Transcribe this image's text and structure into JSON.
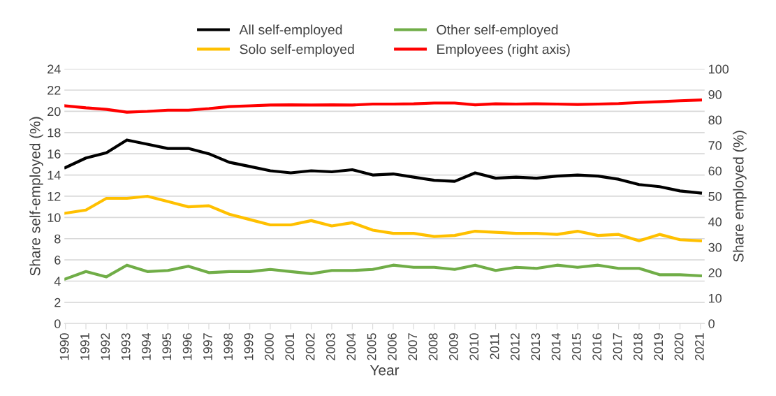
{
  "chart_data": {
    "type": "line",
    "xlabel": "Year",
    "ylabel": "Share self-employed (%)",
    "y2label": "Share employed (%)",
    "categories": [
      "1990",
      "1991",
      "1992",
      "1993",
      "1994",
      "1995",
      "1996",
      "1997",
      "1998",
      "1999",
      "2000",
      "2001",
      "2002",
      "2003",
      "2004",
      "2005",
      "2006",
      "2007",
      "2008",
      "2009",
      "2010",
      "2011",
      "2012",
      "2013",
      "2014",
      "2015",
      "2016",
      "2017",
      "2018",
      "2019",
      "2020",
      "2021"
    ],
    "series": [
      {
        "name": "All self-employed",
        "color": "#000000",
        "values": [
          14.7,
          15.6,
          16.1,
          17.3,
          16.9,
          16.5,
          16.5,
          16.0,
          15.2,
          14.8,
          14.4,
          14.2,
          14.4,
          14.3,
          14.5,
          14.0,
          14.1,
          13.8,
          13.5,
          13.4,
          14.2,
          13.7,
          13.8,
          13.7,
          13.9,
          14.0,
          13.9,
          13.6,
          13.1,
          12.9,
          12.5,
          12.3
        ]
      },
      {
        "name": "Solo self-employed",
        "color": "#ffc000",
        "values": [
          10.4,
          10.7,
          11.8,
          11.8,
          12.0,
          11.5,
          11.0,
          11.1,
          10.3,
          9.8,
          9.3,
          9.3,
          9.7,
          9.2,
          9.5,
          8.8,
          8.5,
          8.5,
          8.2,
          8.3,
          8.7,
          8.6,
          8.5,
          8.5,
          8.4,
          8.7,
          8.3,
          8.4,
          7.8,
          8.4,
          7.9,
          7.8
        ]
      },
      {
        "name": "Other self-employed",
        "color": "#70ad47",
        "values": [
          4.2,
          4.9,
          4.4,
          5.5,
          4.9,
          5.0,
          5.4,
          4.8,
          4.9,
          4.9,
          5.1,
          4.9,
          4.7,
          5.0,
          5.0,
          5.1,
          5.5,
          5.3,
          5.3,
          5.1,
          5.5,
          5.0,
          5.3,
          5.2,
          5.5,
          5.3,
          5.5,
          5.2,
          5.2,
          4.6,
          4.6,
          4.5
        ]
      },
      {
        "name": "Employees (right axis)",
        "color": "#ff0000",
        "axis": "y2",
        "values": [
          85.5,
          84.7,
          84.1,
          83.0,
          83.3,
          83.8,
          83.8,
          84.4,
          85.2,
          85.5,
          85.8,
          85.9,
          85.8,
          85.9,
          85.8,
          86.2,
          86.2,
          86.3,
          86.6,
          86.6,
          85.9,
          86.3,
          86.2,
          86.3,
          86.2,
          86.0,
          86.2,
          86.4,
          86.8,
          87.1,
          87.5,
          87.8
        ]
      }
    ],
    "ylim": [
      0,
      24
    ],
    "yticks": [
      0,
      2,
      4,
      6,
      8,
      10,
      12,
      14,
      16,
      18,
      20,
      22,
      24
    ],
    "y2lim": [
      0,
      100
    ],
    "y2ticks": [
      0,
      10,
      20,
      30,
      40,
      50,
      60,
      70,
      80,
      90,
      100
    ],
    "grid": "y",
    "legend": "top",
    "marker": "none",
    "line_style": "solid"
  }
}
